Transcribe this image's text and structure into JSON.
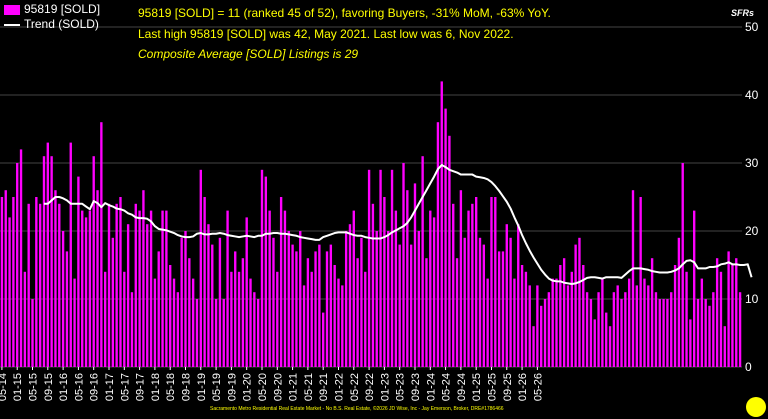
{
  "header": {
    "line1": "95819 [SOLD] = 11 (ranked 45 of 52), favoring Buyers, -31% MoM, -63% YoY.",
    "line2": "Last high 95819 [SOLD] was 42, May 2021. Last low was 6, Nov 2022.",
    "line3": "Composite Average [SOLD] Listings is 29",
    "unit": "SFRs"
  },
  "footer": "Sacramento Metro Residential Real Estate Market - No B.S. Real Estate, ©2026 JD Wise, Inc - Jay Emerson, Broker, DRE#1786466",
  "colors": {
    "bar": "#ff00ff",
    "trend": "#ffffff",
    "text": "#ffff00",
    "background": "#000000",
    "grid": "#444444"
  },
  "chart_data": {
    "type": "bar",
    "legend_placement": "top-left",
    "ylim": [
      0,
      50
    ],
    "yticks": [
      0,
      10,
      20,
      30,
      40,
      50
    ],
    "grid": true,
    "x_tick_labels": [
      "05-14",
      "01-15",
      "05-15",
      "09-15",
      "01-16",
      "05-16",
      "09-16",
      "01-17",
      "05-17",
      "09-17",
      "01-18",
      "05-18",
      "09-18",
      "01-19",
      "05-19",
      "09-19",
      "01-20",
      "05-20",
      "09-20",
      "01-21",
      "05-21",
      "09-21",
      "01-22",
      "05-22",
      "09-22",
      "01-23",
      "05-23",
      "09-23",
      "01-24",
      "05-24",
      "09-24",
      "01-25",
      "05-25",
      "09-25",
      "01-26",
      "05-26"
    ],
    "x_tick_first_index": 0,
    "x_tick_step": 4,
    "series": [
      {
        "name": "95819 [SOLD]",
        "type": "bar",
        "values": [
          25,
          26,
          22,
          25,
          30,
          32,
          14,
          24,
          10,
          25,
          24,
          31,
          33,
          31,
          26,
          24,
          20,
          17,
          33,
          13,
          28,
          23,
          22,
          23,
          31,
          26,
          36,
          14,
          24,
          19,
          24,
          25,
          14,
          21,
          11,
          24,
          23,
          26,
          21,
          23,
          13,
          17,
          23,
          23,
          15,
          13,
          11,
          19,
          20,
          16,
          13,
          10,
          29,
          25,
          21,
          18,
          10,
          19,
          10,
          23,
          14,
          17,
          14,
          16,
          22,
          13,
          11,
          10,
          29,
          28,
          23,
          19,
          14,
          25,
          23,
          20,
          18,
          17,
          20,
          12,
          16,
          14,
          17,
          18,
          8,
          17,
          18,
          15,
          13,
          12,
          20,
          21,
          23,
          16,
          19,
          14,
          29,
          24,
          20,
          29,
          25,
          20,
          29,
          23,
          18,
          30,
          26,
          18,
          27,
          20,
          31,
          16,
          23,
          22,
          36,
          42,
          38,
          34,
          24,
          16,
          26,
          19,
          23,
          24,
          25,
          19,
          18,
          13,
          25,
          25,
          17,
          17,
          21,
          19,
          13,
          21,
          15,
          14,
          12,
          6,
          12,
          9,
          10,
          11,
          13,
          13,
          15,
          16,
          12,
          14,
          18,
          19,
          15,
          11,
          10,
          7,
          11,
          13,
          8,
          6,
          11,
          12,
          10,
          11,
          13,
          26,
          12,
          25,
          13,
          12,
          16,
          11,
          10,
          10,
          10,
          11,
          15,
          19,
          30,
          14,
          7,
          23,
          10,
          13,
          10,
          9,
          11,
          16,
          14,
          6,
          17,
          15,
          16,
          11
        ],
        "x_first": "05-14"
      },
      {
        "name": "Trend (SOLD)",
        "type": "line",
        "start_index": 11,
        "values": [
          24,
          24,
          24.5,
          25,
          25,
          24.8,
          24.5,
          24,
          24,
          24,
          24,
          23.6,
          23.2,
          24.4,
          24.1,
          23.5,
          24.1,
          23.8,
          23.6,
          23.3,
          23.2,
          23,
          22.6,
          22.4,
          22,
          21.9,
          21.9,
          21.8,
          21.4,
          20.7,
          20.3,
          20.2,
          20.1,
          19.9,
          19.7,
          19.4,
          19.2,
          19.1,
          19.1,
          19.2,
          19.6,
          19.7,
          19.5,
          19.5,
          19.6,
          19.6,
          19.7,
          19.6,
          19.4,
          19.3,
          19.2,
          19.1,
          19.2,
          19.3,
          19.2,
          19.1,
          19.3,
          19.3,
          19.6,
          19.6,
          19.7,
          19.7,
          19.6,
          19.6,
          19.5,
          19.4,
          19.3,
          19.1,
          19,
          18.9,
          18.8,
          18.7,
          18.7,
          19.1,
          19.3,
          19.5,
          19.7,
          19.8,
          19.8,
          19.8,
          19.6,
          19.4,
          19.3,
          19.3,
          19.1,
          19,
          18.9,
          18.9,
          18.9,
          19.1,
          19.4,
          19.8,
          20.1,
          20.4,
          20.7,
          21.2,
          22,
          23,
          24,
          25,
          26,
          27,
          28,
          29.1,
          29.7,
          29.4,
          29,
          28.8,
          28.6,
          28.3,
          28.3,
          28.3,
          28.3,
          28,
          27.9,
          27.8,
          27.6,
          27.2,
          26.6,
          25.9,
          25.1,
          24.3,
          23.3,
          22,
          20.8,
          19.4,
          18.2,
          17.1,
          16.1,
          15.2,
          14.3,
          13.6,
          13,
          12.7,
          12.6,
          12.6,
          12.4,
          12.3,
          12.2,
          12.3,
          12.5,
          12.8,
          13.1,
          13.2,
          13.2,
          13.1,
          13,
          13.2,
          13.2,
          13.2,
          13.2,
          13.1,
          13.6,
          14.1,
          14.5,
          14.5,
          14.5,
          14.4,
          14.3,
          14.1,
          14,
          13.9,
          13.9,
          13.9,
          14,
          14.2,
          14.5,
          15.1,
          15.6,
          15.7,
          15.4,
          14.5,
          14.5,
          14.5,
          14.7,
          14.7,
          14.8,
          15.1,
          15.2,
          15.4,
          15.1,
          15.1,
          15,
          15,
          15.1,
          13.2
        ]
      }
    ]
  }
}
